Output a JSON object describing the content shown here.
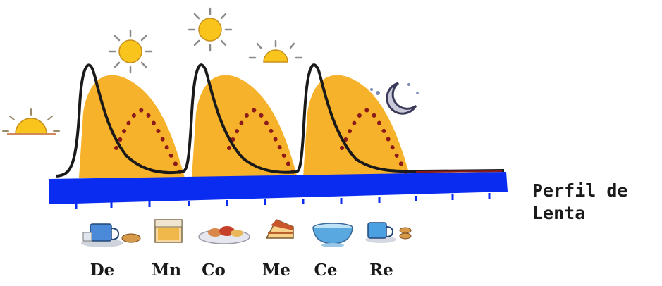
{
  "label": {
    "line1": "Perfil de",
    "line2": "Lenta"
  },
  "meals": [
    {
      "label": "De",
      "icon": "breakfast-icon"
    },
    {
      "label": "Mn",
      "icon": "snack-box-icon"
    },
    {
      "label": "Co",
      "icon": "lunch-plate-icon"
    },
    {
      "label": "Me",
      "icon": "cake-slice-icon"
    },
    {
      "label": "Ce",
      "icon": "dinner-bowl-icon"
    },
    {
      "label": "Re",
      "icon": "night-snack-icon"
    }
  ],
  "sky_icons": [
    "sunrise-icon",
    "morning-sun-icon",
    "noon-sun-icon",
    "evening-sun-icon",
    "moon-icon"
  ],
  "colors": {
    "baseline": "#0a2cf0",
    "fill": "#f7b22b",
    "fast_curve": "#1a1a1a",
    "slow_curve": "#8b1a1a",
    "sun": "#f9c51c",
    "moon": "#3a3a5a"
  }
}
